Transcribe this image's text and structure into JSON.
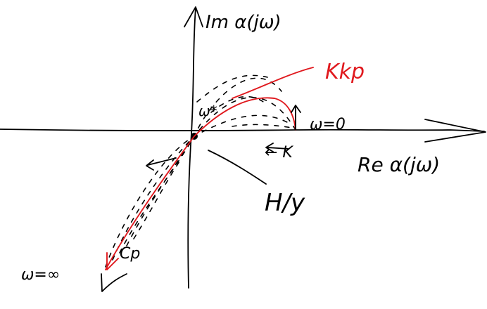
{
  "labels": {
    "imag_axis": "Im α(jω)",
    "real_axis": "Re α(jω)",
    "kkp": "Kkp",
    "omega_zero": "ω=0",
    "k_arrow": "← K",
    "h_over_y": "H/y",
    "omega_inf": "ω=∞",
    "omega_star": "ω*",
    "cp": "Cp"
  },
  "colors": {
    "ink": "#000000",
    "highlight": "#e0191e"
  }
}
